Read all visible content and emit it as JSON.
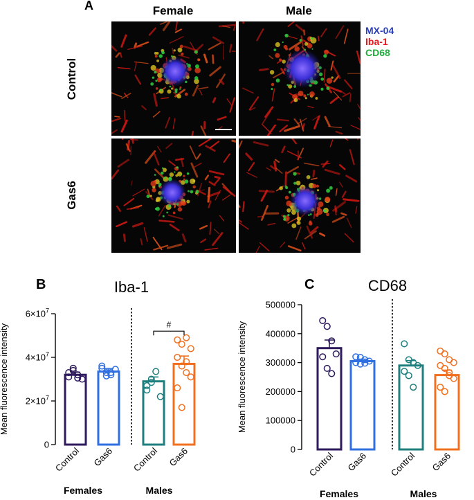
{
  "panel_a": {
    "letter": "A",
    "columns": [
      "Female",
      "Male"
    ],
    "rows": [
      "Control",
      "Gas6"
    ],
    "legend": [
      {
        "label": "MX-04",
        "color": "#2a3fbf"
      },
      {
        "label": "Iba-1",
        "color": "#e8181c"
      },
      {
        "label": "CD68",
        "color": "#1fae3c"
      }
    ]
  },
  "panel_b": {
    "letter": "B",
    "title": "Iba-1"
  },
  "panel_c": {
    "letter": "C",
    "title": "CD68"
  },
  "chart_data": [
    {
      "type": "bar",
      "title": "Iba-1",
      "ylabel": "Mean fluorescence intensity",
      "ylim": [
        0,
        60000000
      ],
      "yticks": [
        {
          "value": 0,
          "mant": "0",
          "exp": ""
        },
        {
          "value": 20000000,
          "mant": "2×10",
          "exp": "7"
        },
        {
          "value": 40000000,
          "mant": "4×10",
          "exp": "7"
        },
        {
          "value": 60000000,
          "mant": "6×10",
          "exp": "7"
        }
      ],
      "categories": [
        "Control",
        "Gas6",
        "Control",
        "Gas6"
      ],
      "groups": [
        "Females",
        "Males"
      ],
      "colors": [
        "#2e1a5c",
        "#2f6fe0",
        "#1f7f7f",
        "#f07020"
      ],
      "values": [
        32000000,
        33500000,
        29000000,
        37000000
      ],
      "errors": [
        1200000,
        1400000,
        2000000,
        3600000
      ],
      "points": [
        [
          33000000,
          35000000,
          32000000,
          30000000,
          31000000,
          34000000,
          30500000
        ],
        [
          35000000,
          33000000,
          32000000,
          34500000,
          36000000,
          31500000,
          33000000
        ],
        [
          27000000,
          30000000,
          33500000,
          22000000,
          25000000,
          28500000
        ],
        [
          48000000,
          46000000,
          49000000,
          44000000,
          40000000,
          36000000,
          33000000,
          31000000,
          26000000,
          17000000,
          38000000
        ]
      ],
      "annotation": "#"
    },
    {
      "type": "bar",
      "title": "CD68",
      "ylabel": "Mean fluorescence intensity",
      "ylim": [
        0,
        500000
      ],
      "yticks": [
        {
          "value": 0,
          "mant": "0",
          "exp": ""
        },
        {
          "value": 100000,
          "mant": "100000",
          "exp": ""
        },
        {
          "value": 200000,
          "mant": "200000",
          "exp": ""
        },
        {
          "value": 300000,
          "mant": "300000",
          "exp": ""
        },
        {
          "value": 400000,
          "mant": "400000",
          "exp": ""
        },
        {
          "value": 500000,
          "mant": "500000",
          "exp": ""
        }
      ],
      "categories": [
        "Control",
        "Gas6",
        "Control",
        "Gas6"
      ],
      "groups": [
        "Females",
        "Males"
      ],
      "colors": [
        "#2e1a5c",
        "#2f6fe0",
        "#1f7f7f",
        "#f07020"
      ],
      "values": [
        350000,
        305000,
        290000,
        257000
      ],
      "errors": [
        28000,
        7000,
        17000,
        17000
      ],
      "points": [
        [
          445000,
          425000,
          375000,
          330000,
          320000,
          280000,
          262000
        ],
        [
          320000,
          318000,
          310000,
          305000,
          300000,
          295000,
          298000
        ],
        [
          365000,
          310000,
          300000,
          290000,
          270000,
          255000,
          215000
        ],
        [
          340000,
          330000,
          310000,
          300000,
          290000,
          280000,
          255000,
          245000,
          215000,
          200000,
          265000
        ]
      ]
    }
  ]
}
